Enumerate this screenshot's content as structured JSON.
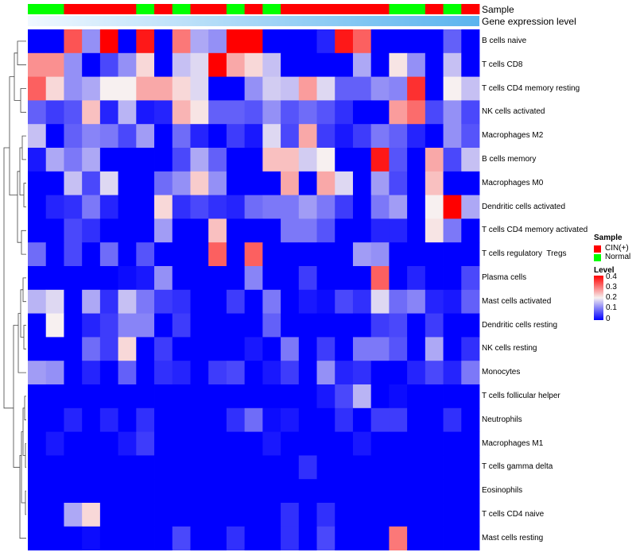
{
  "chart_data": {
    "type": "heatmap",
    "title": "",
    "annotation_tracks": [
      "Sample",
      "Gene expression level"
    ],
    "sample_groups": [
      "Normal",
      "Normal",
      "CIN(+)",
      "CIN(+)",
      "CIN(+)",
      "CIN(+)",
      "Normal",
      "CIN(+)",
      "Normal",
      "CIN(+)",
      "CIN(+)",
      "Normal",
      "CIN(+)",
      "Normal",
      "CIN(+)",
      "CIN(+)",
      "CIN(+)",
      "CIN(+)",
      "CIN(+)",
      "CIN(+)",
      "Normal",
      "Normal",
      "CIN(+)",
      "Normal",
      "CIN(+)"
    ],
    "expression_level_gradient": [
      "#f0f8ff",
      "#5ab4ee"
    ],
    "rows": [
      "B cells naive",
      "T cells CD8",
      "T cells CD4 memory resting",
      "NK cells activated",
      "Macrophages M2",
      "B cells memory",
      "Macrophages M0",
      "Dendritic cells activated",
      "T cells CD4 memory activated",
      "T cells regulatory  Tregs",
      "Plasma cells",
      "Mast cells activated",
      "Dendritic cells resting",
      "NK cells resting",
      "Monocytes",
      "T cells follicular helper",
      "Neutrophils",
      "Macrophages M1",
      "T cells gamma delta",
      "Eosinophils",
      "T cells CD4 naive",
      "Mast cells resting"
    ],
    "values": [
      [
        0,
        0,
        0.33,
        0.12,
        0.4,
        0,
        0.38,
        0,
        0.3,
        0.14,
        0.12,
        0.4,
        0.4,
        0,
        0,
        0,
        0.03,
        0.38,
        0.32,
        0,
        0,
        0,
        0,
        0.08,
        0
      ],
      [
        0.28,
        0.28,
        0.12,
        0,
        0.06,
        0.12,
        0.22,
        0,
        0.16,
        0.18,
        0.4,
        0.26,
        0.22,
        0.16,
        0,
        0,
        0,
        0,
        0.14,
        0,
        0.21,
        0.12,
        0,
        0.16,
        0
      ],
      [
        0.32,
        0.22,
        0.12,
        0.14,
        0.2,
        0.2,
        0.26,
        0.26,
        0.22,
        0.18,
        0,
        0,
        0.12,
        0.17,
        0.16,
        0.27,
        0.18,
        0.08,
        0.08,
        0.12,
        0.11,
        0.36,
        0,
        0.2,
        0.16
      ],
      [
        0.08,
        0.05,
        0.07,
        0.24,
        0.03,
        0.15,
        0.02,
        0.03,
        0.25,
        0.21,
        0.08,
        0.08,
        0.07,
        0.12,
        0.07,
        0.09,
        0.07,
        0.04,
        0,
        0,
        0.27,
        0.31,
        0.06,
        0.12,
        0.06
      ],
      [
        0.16,
        0,
        0.08,
        0.11,
        0.1,
        0.06,
        0.13,
        0,
        0.09,
        0.03,
        0,
        0.05,
        0.02,
        0.18,
        0.06,
        0.26,
        0.05,
        0.02,
        0.05,
        0.1,
        0.08,
        0.03,
        0,
        0.12,
        0.07
      ],
      [
        0.02,
        0.14,
        0.1,
        0.14,
        0,
        0,
        0,
        0,
        0.06,
        0.14,
        0.08,
        0,
        0,
        0.24,
        0.24,
        0.17,
        0.2,
        0,
        0,
        0.38,
        0.07,
        0,
        0.26,
        0.06,
        0.16
      ],
      [
        0,
        0,
        0.16,
        0.06,
        0.18,
        0,
        0,
        0.09,
        0.12,
        0.23,
        0.12,
        0,
        0,
        0,
        0.26,
        0,
        0.26,
        0.18,
        0,
        0.13,
        0.06,
        0,
        0.24,
        0,
        0
      ],
      [
        0,
        0.03,
        0.04,
        0.1,
        0.03,
        0,
        0,
        0.22,
        0.04,
        0.06,
        0.04,
        0.03,
        0.09,
        0.1,
        0.1,
        0.13,
        0.1,
        0.05,
        0,
        0.1,
        0.13,
        0,
        0.2,
        0.4,
        0.14
      ],
      [
        0,
        0,
        0.06,
        0.04,
        0,
        0,
        0,
        0.13,
        0,
        0,
        0.24,
        0,
        0,
        0,
        0.1,
        0.1,
        0.07,
        0,
        0,
        0.03,
        0.03,
        0,
        0.21,
        0.1,
        0
      ],
      [
        0.09,
        0,
        0.06,
        0,
        0.09,
        0,
        0.07,
        0,
        0,
        0,
        0.32,
        0,
        0.32,
        0,
        0,
        0,
        0,
        0,
        0.13,
        0.12,
        0,
        0,
        0,
        0,
        0
      ],
      [
        0,
        0,
        0,
        0,
        0,
        0.01,
        0.02,
        0.12,
        0,
        0,
        0,
        0,
        0.11,
        0,
        0,
        0.05,
        0,
        0,
        0,
        0.32,
        0,
        0.03,
        0,
        0,
        0.06
      ],
      [
        0.15,
        0.18,
        0,
        0.14,
        0.04,
        0.16,
        0.1,
        0.05,
        0.04,
        0,
        0,
        0.05,
        0,
        0.1,
        0,
        0.02,
        0.01,
        0.06,
        0.04,
        0.18,
        0.09,
        0.11,
        0.03,
        0.02,
        0.08
      ],
      [
        0,
        0.2,
        0,
        0.03,
        0.05,
        0.11,
        0.11,
        0,
        0.05,
        0,
        0,
        0,
        0,
        0.08,
        0,
        0,
        0,
        0,
        0,
        0.05,
        0.06,
        0,
        0.05,
        0,
        0
      ],
      [
        0,
        0,
        0,
        0.09,
        0.05,
        0.22,
        0,
        0.05,
        0,
        0,
        0,
        0,
        0.02,
        0,
        0.1,
        0,
        0.05,
        0,
        0.1,
        0.1,
        0.07,
        0,
        0.14,
        0,
        0.04
      ],
      [
        0.13,
        0.12,
        0,
        0.03,
        0,
        0.08,
        0,
        0.04,
        0.03,
        0,
        0.05,
        0.06,
        0,
        0.02,
        0.05,
        0,
        0.12,
        0.03,
        0.04,
        0,
        0,
        0.03,
        0.06,
        0.03,
        0.1
      ],
      [
        0,
        0,
        0,
        0,
        0,
        0,
        0,
        0,
        0,
        0,
        0,
        0,
        0,
        0,
        0,
        0,
        0.02,
        0.06,
        0.15,
        0,
        0.01,
        0,
        0,
        0,
        0
      ],
      [
        0,
        0,
        0.03,
        0,
        0.03,
        0,
        0.04,
        0,
        0,
        0,
        0,
        0.04,
        0.09,
        0.01,
        0.02,
        0,
        0,
        0.04,
        0,
        0.05,
        0.05,
        0,
        0,
        0.04,
        0
      ],
      [
        0,
        0.02,
        0,
        0,
        0,
        0.02,
        0.05,
        0,
        0,
        0,
        0,
        0,
        0,
        0.02,
        0,
        0,
        0,
        0,
        0.02,
        0,
        0,
        0,
        0,
        0,
        0
      ],
      [
        0,
        0,
        0,
        0,
        0,
        0,
        0,
        0,
        0,
        0,
        0,
        0,
        0,
        0,
        0,
        0.04,
        0,
        0,
        0,
        0,
        0,
        0,
        0,
        0,
        0
      ],
      [
        0,
        0,
        0,
        0,
        0,
        0,
        0,
        0,
        0,
        0,
        0,
        0,
        0,
        0,
        0,
        0,
        0,
        0,
        0,
        0,
        0,
        0,
        0,
        0,
        0
      ],
      [
        0,
        0,
        0.14,
        0.22,
        0,
        0,
        0,
        0,
        0,
        0,
        0,
        0,
        0,
        0,
        0.04,
        0,
        0.04,
        0,
        0,
        0,
        0,
        0,
        0,
        0,
        0
      ],
      [
        0,
        0,
        0,
        0.01,
        0,
        0,
        0,
        0,
        0.06,
        0,
        0,
        0.04,
        0,
        0,
        0.04,
        0,
        0.06,
        0,
        0,
        0,
        0.3,
        0,
        0,
        0,
        0
      ]
    ],
    "legend": {
      "sample_title": "Sample",
      "sample_entries": [
        {
          "label": "CIN(+)",
          "color": "#ff0000"
        },
        {
          "label": "Normal",
          "color": "#00ff00"
        }
      ],
      "level_title": "Level",
      "level_ticks": [
        "0.4",
        "0.3",
        "0.2",
        "0.1",
        "0"
      ],
      "color_scale": {
        "min": 0,
        "mid": 0.2,
        "max": 0.4,
        "low_color": "#0000ff",
        "mid_color": "#f7f0f0",
        "high_color": "#ff0000"
      }
    }
  }
}
